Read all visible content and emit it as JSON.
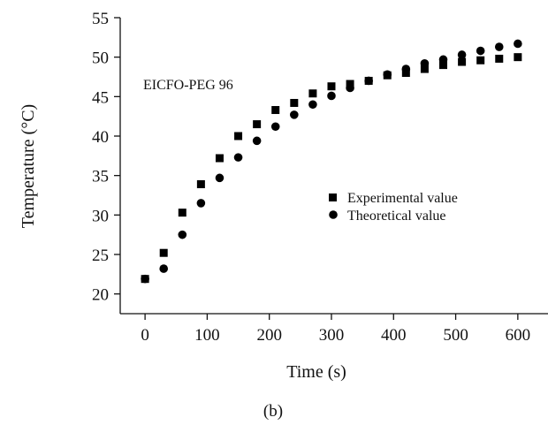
{
  "chart_data": {
    "type": "scatter",
    "title": "",
    "annotation": "EICFO-PEG 96",
    "xlabel": "Time (s)",
    "ylabel": "Temperature (°C)",
    "caption": "(b)",
    "xlim": [
      -40,
      650
    ],
    "ylim": [
      17.5,
      55
    ],
    "xticks": [
      0,
      100,
      200,
      300,
      400,
      500,
      600
    ],
    "yticks": [
      20,
      25,
      30,
      35,
      40,
      45,
      50,
      55
    ],
    "legend_position": "center-right",
    "grid": false,
    "series": [
      {
        "name": "Experimental value",
        "marker": "square",
        "color": "#000000",
        "points": [
          [
            0,
            21.9
          ],
          [
            30,
            25.2
          ],
          [
            60,
            30.3
          ],
          [
            90,
            33.9
          ],
          [
            120,
            37.2
          ],
          [
            150,
            40.0
          ],
          [
            180,
            41.5
          ],
          [
            210,
            43.3
          ],
          [
            240,
            44.2
          ],
          [
            270,
            45.4
          ],
          [
            300,
            46.3
          ],
          [
            330,
            46.6
          ],
          [
            360,
            47.0
          ],
          [
            390,
            47.7
          ],
          [
            420,
            48.0
          ],
          [
            450,
            48.5
          ],
          [
            480,
            49.0
          ],
          [
            510,
            49.4
          ],
          [
            540,
            49.6
          ],
          [
            570,
            49.8
          ],
          [
            600,
            50.0
          ]
        ]
      },
      {
        "name": "Theoretical value",
        "marker": "circle",
        "color": "#000000",
        "points": [
          [
            0,
            21.9
          ],
          [
            30,
            23.2
          ],
          [
            60,
            27.5
          ],
          [
            90,
            31.5
          ],
          [
            120,
            34.7
          ],
          [
            150,
            37.3
          ],
          [
            180,
            39.4
          ],
          [
            210,
            41.2
          ],
          [
            240,
            42.7
          ],
          [
            270,
            44.0
          ],
          [
            300,
            45.1
          ],
          [
            330,
            46.1
          ],
          [
            360,
            47.0
          ],
          [
            390,
            47.8
          ],
          [
            420,
            48.5
          ],
          [
            450,
            49.2
          ],
          [
            480,
            49.7
          ],
          [
            510,
            50.3
          ],
          [
            540,
            50.8
          ],
          [
            570,
            51.3
          ],
          [
            600,
            51.7
          ]
        ]
      }
    ]
  }
}
